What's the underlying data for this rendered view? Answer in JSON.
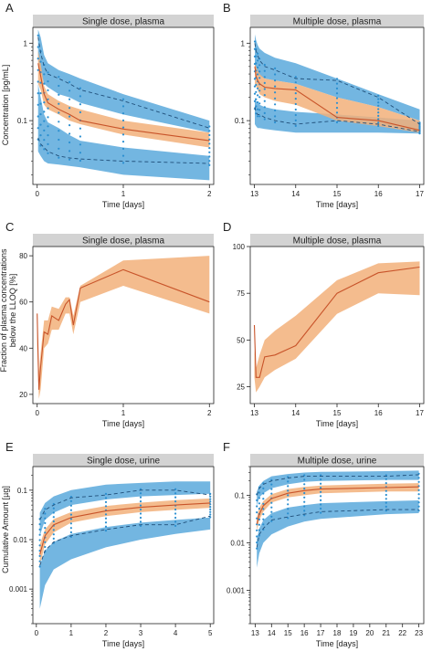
{
  "colors": {
    "band_blue": "#5aa9dc",
    "band_orange": "#f2b07a",
    "median_line": "#c8542a",
    "obs_points": "#2b8fd0",
    "dashed": "#1f4e79",
    "strip_bg": "#d3d3d3",
    "axis": "#222222"
  },
  "ylabels": {
    "row1": "Concentration [pg/mL]",
    "row2_line1": "Fraction of plasma concentrations",
    "row2_line2": "below the LLOQ [%]",
    "row3": "Cumulative Amount [µg]"
  },
  "chart_data": [
    {
      "panel": "A",
      "title": "Single dose, plasma",
      "type": "line",
      "ylog": true,
      "xlabel": "Time [days]",
      "xlim": [
        -0.05,
        2.05
      ],
      "ylim": [
        0.015,
        1.6
      ],
      "xticks": [
        0,
        1,
        2
      ],
      "xtick_labels": [
        "0",
        "1",
        "2"
      ],
      "yticks": [
        0.1,
        1
      ],
      "ytick_labels": [
        "0.1",
        "1"
      ],
      "x": [
        0.01,
        0.04,
        0.08,
        0.125,
        0.25,
        0.375,
        0.5,
        1,
        2
      ],
      "median": [
        0.55,
        0.38,
        0.22,
        0.17,
        0.14,
        0.12,
        0.1,
        0.078,
        0.055
      ],
      "pi_median_band": {
        "lo": [
          0.3,
          0.25,
          0.16,
          0.14,
          0.12,
          0.1,
          0.09,
          0.066,
          0.045
        ],
        "hi": [
          0.8,
          0.55,
          0.28,
          0.22,
          0.18,
          0.155,
          0.14,
          0.1,
          0.07
        ]
      },
      "pi_low_band": {
        "lo": [
          0.04,
          0.035,
          0.03,
          0.028,
          0.027,
          0.026,
          0.025,
          0.02,
          0.017
        ],
        "hi": [
          0.3,
          0.2,
          0.12,
          0.095,
          0.08,
          0.065,
          0.055,
          0.045,
          0.035
        ]
      },
      "pi_high_band": {
        "lo": [
          0.6,
          0.45,
          0.3,
          0.27,
          0.22,
          0.2,
          0.17,
          0.12,
          0.07
        ],
        "hi": [
          1.5,
          1.2,
          0.7,
          0.55,
          0.45,
          0.4,
          0.35,
          0.22,
          0.1
        ]
      },
      "obs_p05": [
        0.06,
        0.05,
        0.045,
        0.04,
        0.035,
        0.033,
        0.032,
        0.03,
        0.028
      ],
      "obs_p95": [
        1.2,
        0.75,
        0.5,
        0.4,
        0.35,
        0.3,
        0.25,
        0.18,
        0.08
      ]
    },
    {
      "panel": "B",
      "title": "Multiple dose, plasma",
      "type": "line",
      "ylog": true,
      "xlabel": "Time [days]",
      "xlim": [
        12.9,
        17.1
      ],
      "ylim": [
        0.015,
        1.6
      ],
      "xticks": [
        13,
        14,
        15,
        16,
        17
      ],
      "xtick_labels": [
        "13",
        "14",
        "15",
        "16",
        "17"
      ],
      "yticks": [
        0.1,
        1
      ],
      "ytick_labels": [
        "0.1",
        "1"
      ],
      "x": [
        13.01,
        13.04,
        13.08,
        13.125,
        13.25,
        13.5,
        14,
        15,
        16,
        17
      ],
      "median": [
        0.5,
        0.38,
        0.33,
        0.3,
        0.27,
        0.26,
        0.25,
        0.11,
        0.1,
        0.075
      ],
      "pi_median_band": {
        "lo": [
          0.3,
          0.28,
          0.25,
          0.22,
          0.2,
          0.18,
          0.16,
          0.1,
          0.085,
          0.07
        ],
        "hi": [
          0.55,
          0.5,
          0.45,
          0.4,
          0.35,
          0.33,
          0.3,
          0.2,
          0.15,
          0.1
        ]
      },
      "pi_low_band": {
        "lo": [
          0.09,
          0.085,
          0.08,
          0.08,
          0.078,
          0.075,
          0.07,
          0.07,
          0.07,
          0.068
        ],
        "hi": [
          0.2,
          0.18,
          0.17,
          0.16,
          0.15,
          0.14,
          0.13,
          0.12,
          0.11,
          0.1
        ]
      },
      "pi_high_band": {
        "lo": [
          0.45,
          0.42,
          0.4,
          0.38,
          0.35,
          0.33,
          0.3,
          0.2,
          0.15,
          0.1
        ],
        "hi": [
          1.3,
          1.1,
          0.95,
          0.85,
          0.75,
          0.65,
          0.55,
          0.35,
          0.22,
          0.14
        ]
      },
      "obs_p05": [
        0.15,
        0.13,
        0.12,
        0.12,
        0.11,
        0.1,
        0.09,
        0.1,
        0.09,
        0.072
      ],
      "obs_p95": [
        1.0,
        0.8,
        0.7,
        0.6,
        0.5,
        0.45,
        0.35,
        0.33,
        0.2,
        0.09
      ]
    },
    {
      "panel": "C",
      "title": "Single dose, plasma",
      "type": "line",
      "ylog": false,
      "xlabel": "Time [days]",
      "xlim": [
        -0.05,
        2.05
      ],
      "ylim": [
        16,
        84
      ],
      "xticks": [
        0,
        1,
        2
      ],
      "xtick_labels": [
        "0",
        "1",
        "2"
      ],
      "yticks": [
        20,
        40,
        60,
        80
      ],
      "ytick_labels": [
        "20",
        "40",
        "60",
        "80"
      ],
      "x": [
        0,
        0.02,
        0.04,
        0.08,
        0.125,
        0.17,
        0.25,
        0.33,
        0.375,
        0.42,
        0.5,
        1,
        2
      ],
      "median": [
        55,
        22,
        32,
        47,
        46,
        54,
        52,
        59,
        61,
        50,
        66,
        74,
        60
      ],
      "pi_median_band": {
        "lo": [
          40,
          18,
          22,
          40,
          42,
          48,
          48,
          55,
          55,
          46,
          60,
          67,
          55
        ],
        "hi": [
          55,
          30,
          38,
          52,
          52,
          58,
          57,
          62,
          62,
          54,
          67,
          78,
          80
        ]
      }
    },
    {
      "panel": "D",
      "title": "Multiple dose, plasma",
      "type": "line",
      "ylog": false,
      "xlabel": "Time [days]",
      "xlim": [
        12.9,
        17.1
      ],
      "ylim": [
        16,
        100
      ],
      "xticks": [
        13,
        14,
        15,
        16,
        17
      ],
      "xtick_labels": [
        "13",
        "14",
        "15",
        "16",
        "17"
      ],
      "yticks": [
        25,
        50,
        75,
        100
      ],
      "ytick_labels": [
        "25",
        "50",
        "75",
        "100"
      ],
      "x": [
        13,
        13.04,
        13.125,
        13.25,
        13.5,
        14,
        15,
        16,
        17
      ],
      "median": [
        58,
        30,
        30,
        41,
        42,
        47,
        75,
        86,
        89
      ],
      "pi_median_band": {
        "lo": [
          30,
          22,
          25,
          30,
          34,
          40,
          64,
          75,
          74
        ],
        "hi": [
          45,
          35,
          42,
          50,
          55,
          63,
          82,
          91,
          92
        ]
      }
    },
    {
      "panel": "E",
      "title": "Single dose, urine",
      "type": "line",
      "ylog": true,
      "xlabel": "Time [days]",
      "xlim": [
        -0.1,
        5.1
      ],
      "ylim": [
        0.0002,
        0.3
      ],
      "xticks": [
        0,
        1,
        2,
        3,
        4,
        5
      ],
      "xtick_labels": [
        "0",
        "1",
        "2",
        "3",
        "4",
        "5"
      ],
      "yticks": [
        0.001,
        0.01,
        0.1
      ],
      "ytick_labels": [
        "0.001",
        "0.01",
        "0.1"
      ],
      "x": [
        0.1,
        0.25,
        0.5,
        1,
        2,
        3,
        4,
        5
      ],
      "median": [
        0.005,
        0.012,
        0.02,
        0.028,
        0.038,
        0.045,
        0.05,
        0.055
      ],
      "pi_median_band": {
        "lo": [
          0.003,
          0.008,
          0.014,
          0.022,
          0.03,
          0.036,
          0.04,
          0.044
        ],
        "hi": [
          0.008,
          0.016,
          0.026,
          0.036,
          0.048,
          0.056,
          0.063,
          0.068
        ]
      },
      "pi_low_band": {
        "lo": [
          0.0004,
          0.0012,
          0.0025,
          0.004,
          0.007,
          0.01,
          0.013,
          0.016
        ],
        "hi": [
          0.003,
          0.006,
          0.009,
          0.013,
          0.018,
          0.022,
          0.025,
          0.028
        ]
      },
      "pi_high_band": {
        "lo": [
          0.012,
          0.025,
          0.035,
          0.05,
          0.065,
          0.075,
          0.08,
          0.085
        ],
        "hi": [
          0.035,
          0.055,
          0.075,
          0.1,
          0.13,
          0.14,
          0.15,
          0.15
        ]
      },
      "obs_p05": [
        0.003,
        0.006,
        0.009,
        0.012,
        0.016,
        0.02,
        0.02,
        0.03
      ],
      "obs_p95": [
        0.025,
        0.04,
        0.05,
        0.07,
        0.08,
        0.1,
        0.1,
        0.08
      ]
    },
    {
      "panel": "F",
      "title": "Multiple dose, urine",
      "type": "line",
      "ylog": true,
      "xlabel": "Time [days]",
      "xlim": [
        12.7,
        23.3
      ],
      "ylim": [
        0.0002,
        0.4
      ],
      "xticks": [
        13,
        14,
        15,
        16,
        17,
        18,
        19,
        20,
        21,
        22,
        23
      ],
      "xtick_labels": [
        "13",
        "14",
        "15",
        "16",
        "17",
        "18",
        "19",
        "20",
        "21",
        "22",
        "23"
      ],
      "yticks": [
        0.001,
        0.01,
        0.1
      ],
      "ytick_labels": [
        "0.001",
        "0.01",
        "0.1"
      ],
      "x": [
        13.1,
        13.25,
        13.5,
        14,
        15,
        16,
        17,
        21,
        23
      ],
      "median": [
        0.025,
        0.04,
        0.06,
        0.085,
        0.11,
        0.125,
        0.135,
        0.145,
        0.15
      ],
      "pi_median_band": {
        "lo": [
          0.018,
          0.03,
          0.045,
          0.07,
          0.09,
          0.1,
          0.11,
          0.12,
          0.12
        ],
        "hi": [
          0.035,
          0.055,
          0.075,
          0.105,
          0.135,
          0.15,
          0.16,
          0.175,
          0.18
        ]
      },
      "pi_low_band": {
        "lo": [
          0.003,
          0.006,
          0.01,
          0.015,
          0.022,
          0.028,
          0.032,
          0.04,
          0.042
        ],
        "hi": [
          0.012,
          0.02,
          0.03,
          0.042,
          0.055,
          0.062,
          0.068,
          0.075,
          0.078
        ]
      },
      "pi_high_band": {
        "lo": [
          0.06,
          0.09,
          0.11,
          0.14,
          0.17,
          0.19,
          0.2,
          0.21,
          0.21
        ],
        "hi": [
          0.12,
          0.16,
          0.2,
          0.25,
          0.28,
          0.3,
          0.31,
          0.32,
          0.33
        ]
      },
      "obs_p05": [
        0.008,
        0.015,
        0.02,
        0.03,
        0.035,
        0.04,
        0.045,
        0.05,
        0.05
      ],
      "obs_p95": [
        0.1,
        0.14,
        0.17,
        0.2,
        0.23,
        0.25,
        0.25,
        0.25,
        0.27
      ]
    }
  ]
}
